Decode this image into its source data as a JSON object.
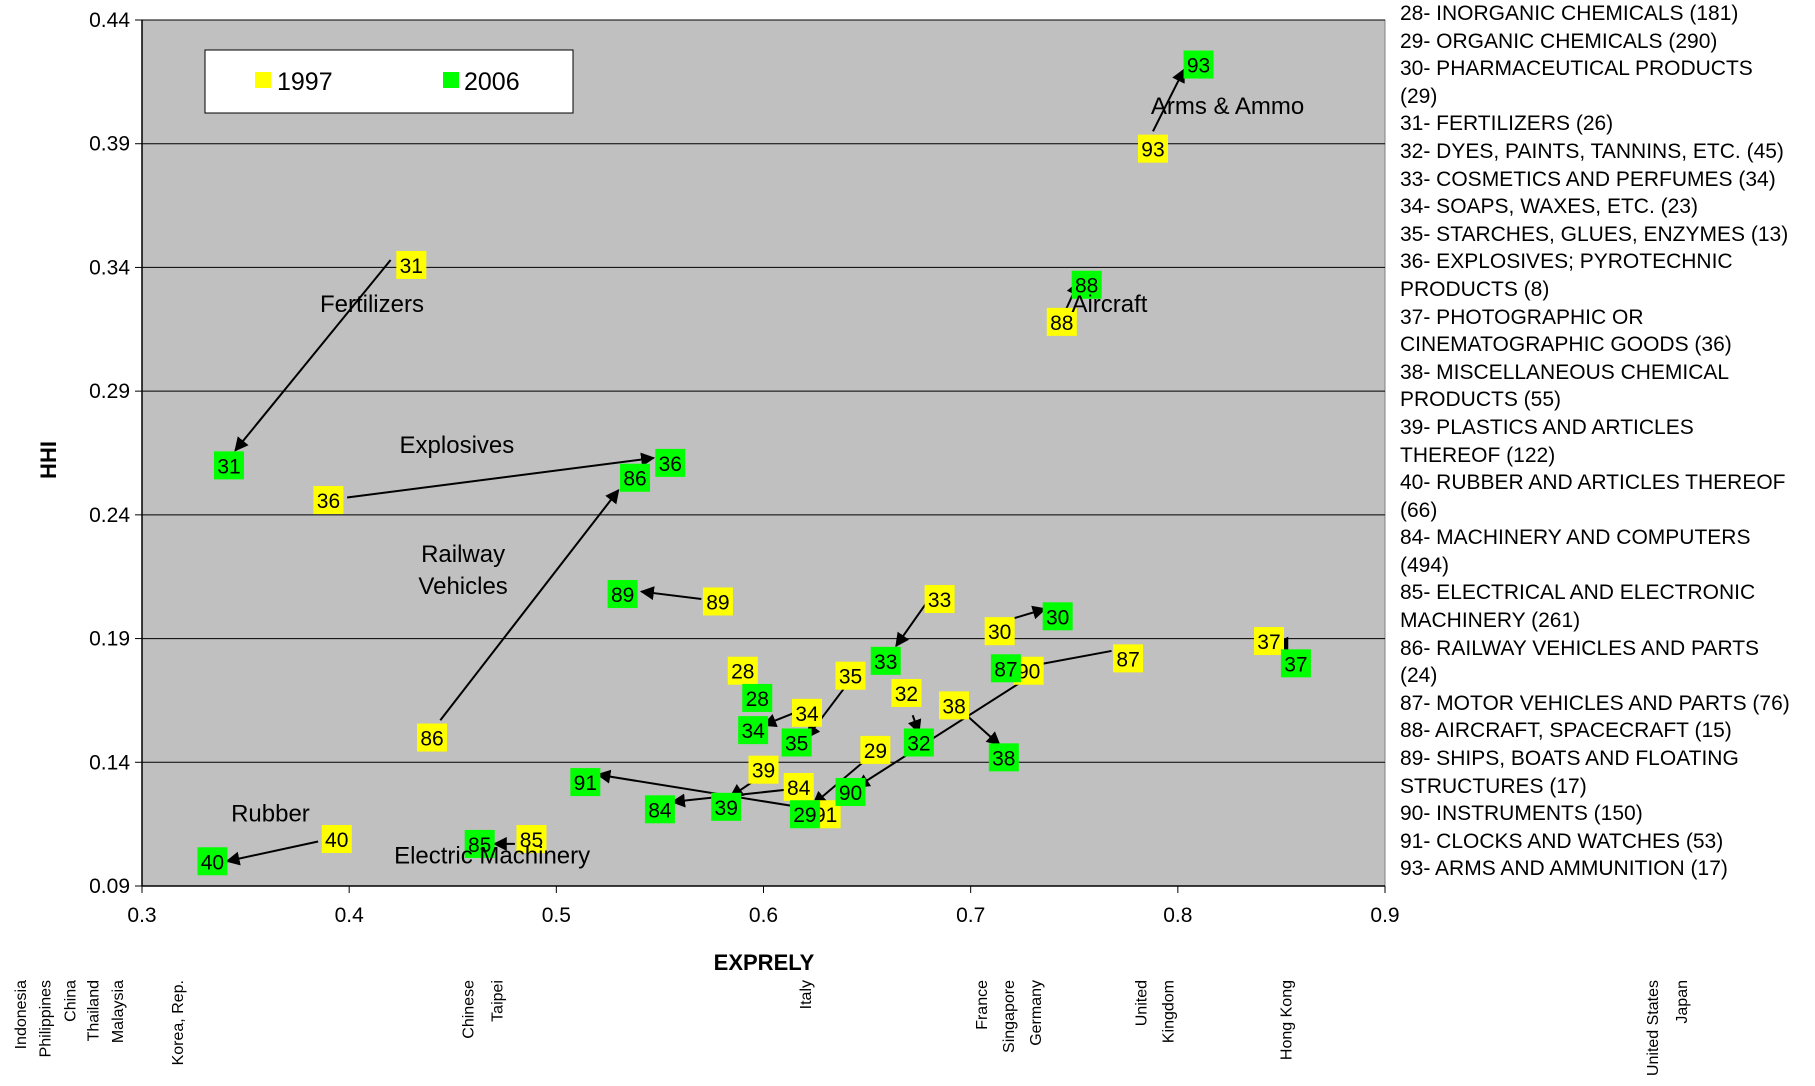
{
  "chart_data": {
    "type": "scatter",
    "xlabel": "EXPRELY",
    "ylabel": "HHI",
    "xlim": [
      0.3,
      0.9
    ],
    "ylim": [
      0.09,
      0.44
    ],
    "x_ticks": [
      "0.3",
      "0.4",
      "0.5",
      "0.6",
      "0.7",
      "0.8",
      "0.9"
    ],
    "y_ticks": [
      "0.09",
      "0.14",
      "0.19",
      "0.24",
      "0.29",
      "0.34",
      "0.39",
      "0.44"
    ],
    "grid": "horizontal",
    "legend": {
      "placement": "top-left",
      "entries": [
        "1997",
        "2006"
      ]
    },
    "colors": {
      "1997": "#ffff00",
      "2006": "#00ff00",
      "plot_background": "#c0c0c0"
    },
    "series": [
      {
        "name": "1997",
        "points": [
          {
            "label": "31",
            "x": 0.43,
            "y": 0.341
          },
          {
            "label": "36",
            "x": 0.39,
            "y": 0.246
          },
          {
            "label": "86",
            "x": 0.44,
            "y": 0.15
          },
          {
            "label": "89",
            "x": 0.578,
            "y": 0.205
          },
          {
            "label": "40",
            "x": 0.394,
            "y": 0.109
          },
          {
            "label": "85",
            "x": 0.488,
            "y": 0.109
          },
          {
            "label": "93",
            "x": 0.788,
            "y": 0.388
          },
          {
            "label": "88",
            "x": 0.744,
            "y": 0.318
          },
          {
            "label": "33",
            "x": 0.685,
            "y": 0.206
          },
          {
            "label": "30",
            "x": 0.714,
            "y": 0.193
          },
          {
            "label": "87",
            "x": 0.776,
            "y": 0.182
          },
          {
            "label": "37",
            "x": 0.844,
            "y": 0.189
          },
          {
            "label": "28",
            "x": 0.59,
            "y": 0.177
          },
          {
            "label": "35",
            "x": 0.642,
            "y": 0.175
          },
          {
            "label": "34",
            "x": 0.621,
            "y": 0.16
          },
          {
            "label": "32",
            "x": 0.669,
            "y": 0.168
          },
          {
            "label": "38",
            "x": 0.692,
            "y": 0.163
          },
          {
            "label": "29",
            "x": 0.654,
            "y": 0.145
          },
          {
            "label": "39",
            "x": 0.6,
            "y": 0.137
          },
          {
            "label": "84",
            "x": 0.617,
            "y": 0.13
          },
          {
            "label": "90",
            "x": 0.728,
            "y": 0.177
          },
          {
            "label": "91",
            "x": 0.63,
            "y": 0.119
          }
        ]
      },
      {
        "name": "2006",
        "points": [
          {
            "label": "31",
            "x": 0.342,
            "y": 0.26
          },
          {
            "label": "36",
            "x": 0.555,
            "y": 0.261
          },
          {
            "label": "86",
            "x": 0.538,
            "y": 0.255
          },
          {
            "label": "89",
            "x": 0.532,
            "y": 0.208
          },
          {
            "label": "40",
            "x": 0.334,
            "y": 0.1
          },
          {
            "label": "85",
            "x": 0.463,
            "y": 0.107
          },
          {
            "label": "93",
            "x": 0.81,
            "y": 0.422
          },
          {
            "label": "88",
            "x": 0.756,
            "y": 0.333
          },
          {
            "label": "33",
            "x": 0.659,
            "y": 0.181
          },
          {
            "label": "30",
            "x": 0.742,
            "y": 0.199
          },
          {
            "label": "87",
            "x": 0.717,
            "y": 0.178
          },
          {
            "label": "37",
            "x": 0.857,
            "y": 0.18
          },
          {
            "label": "28",
            "x": 0.597,
            "y": 0.166
          },
          {
            "label": "35",
            "x": 0.616,
            "y": 0.148
          },
          {
            "label": "34",
            "x": 0.595,
            "y": 0.153
          },
          {
            "label": "32",
            "x": 0.675,
            "y": 0.148
          },
          {
            "label": "38",
            "x": 0.716,
            "y": 0.142
          },
          {
            "label": "29",
            "x": 0.62,
            "y": 0.119
          },
          {
            "label": "39",
            "x": 0.582,
            "y": 0.122
          },
          {
            "label": "84",
            "x": 0.55,
            "y": 0.121
          },
          {
            "label": "90",
            "x": 0.642,
            "y": 0.128
          },
          {
            "label": "91",
            "x": 0.514,
            "y": 0.132
          }
        ]
      }
    ],
    "arrows": [
      {
        "label": "31",
        "from": [
          0.42,
          0.343
        ],
        "to": [
          0.345,
          0.266
        ]
      },
      {
        "label": "36",
        "from": [
          0.399,
          0.247
        ],
        "to": [
          0.547,
          0.263
        ]
      },
      {
        "label": "86",
        "from": [
          0.444,
          0.157
        ],
        "to": [
          0.53,
          0.25
        ]
      },
      {
        "label": "89",
        "from": [
          0.57,
          0.206
        ],
        "to": [
          0.541,
          0.209
        ]
      },
      {
        "label": "40",
        "from": [
          0.385,
          0.108
        ],
        "to": [
          0.341,
          0.1
        ]
      },
      {
        "label": "85",
        "from": [
          0.48,
          0.107
        ],
        "to": [
          0.47,
          0.107
        ]
      },
      {
        "label": "93",
        "from": [
          0.788,
          0.395
        ],
        "to": [
          0.803,
          0.42
        ]
      },
      {
        "label": "88",
        "from": [
          0.746,
          0.323
        ],
        "to": [
          0.752,
          0.334
        ]
      },
      {
        "label": "33",
        "from": [
          0.68,
          0.206
        ],
        "to": [
          0.664,
          0.187
        ]
      },
      {
        "label": "30",
        "from": [
          0.72,
          0.198
        ],
        "to": [
          0.736,
          0.202
        ]
      },
      {
        "label": "87",
        "from": [
          0.768,
          0.185
        ],
        "to": [
          0.723,
          0.178
        ]
      },
      {
        "label": "37",
        "from": [
          0.85,
          0.19
        ],
        "to": [
          0.853,
          0.185
        ]
      },
      {
        "label": "35",
        "from": [
          0.639,
          0.17
        ],
        "to": [
          0.621,
          0.15
        ]
      },
      {
        "label": "34",
        "from": [
          0.615,
          0.16
        ],
        "to": [
          0.6,
          0.155
        ]
      },
      {
        "label": "32",
        "from": [
          0.672,
          0.159
        ],
        "to": [
          0.675,
          0.152
        ]
      },
      {
        "label": "38",
        "from": [
          0.698,
          0.159
        ],
        "to": [
          0.714,
          0.147
        ]
      },
      {
        "label": "29",
        "from": [
          0.648,
          0.14
        ],
        "to": [
          0.624,
          0.123
        ]
      },
      {
        "label": "39",
        "from": [
          0.598,
          0.134
        ],
        "to": [
          0.584,
          0.126
        ]
      },
      {
        "label": "84",
        "from": [
          0.612,
          0.129
        ],
        "to": [
          0.556,
          0.124
        ]
      },
      {
        "label": "90",
        "from": [
          0.731,
          0.176
        ],
        "to": [
          0.645,
          0.13
        ]
      },
      {
        "label": "91",
        "from": [
          0.624,
          0.121
        ],
        "to": [
          0.52,
          0.135
        ]
      }
    ],
    "annotations": [
      {
        "text": "Fertilizers",
        "x": 0.411,
        "y": 0.322
      },
      {
        "text": "Explosives",
        "x": 0.452,
        "y": 0.265
      },
      {
        "text": "Railway",
        "x": 0.455,
        "y": 0.221
      },
      {
        "text": "Vehicles",
        "x": 0.455,
        "y": 0.208
      },
      {
        "text": "Rubber",
        "x": 0.362,
        "y": 0.116
      },
      {
        "text": "Electric Machinery",
        "x": 0.469,
        "y": 0.099
      },
      {
        "text": "Arms & Ammo",
        "x": 0.824,
        "y": 0.402
      },
      {
        "text": "Aircraft",
        "x": 0.767,
        "y": 0.322
      }
    ],
    "countries": [
      {
        "text": "Indonesia",
        "x": 0.241
      },
      {
        "text": "Philippines",
        "x": 0.253
      },
      {
        "text": "China",
        "x": 0.265
      },
      {
        "text": "Thailand",
        "x": 0.276
      },
      {
        "text": "Malaysia",
        "x": 0.288
      },
      {
        "text": "Korea, Rep.",
        "x": 0.317
      },
      {
        "text": "Chinese",
        "x": 0.457
      },
      {
        "text": "Taipei",
        "x": 0.471
      },
      {
        "text": "Italy",
        "x": 0.62
      },
      {
        "text": "France",
        "x": 0.705
      },
      {
        "text": "Singapore",
        "x": 0.718
      },
      {
        "text": "Germany",
        "x": 0.731
      },
      {
        "text": "United",
        "x": 0.782
      },
      {
        "text": "Kingdom",
        "x": 0.795
      },
      {
        "text": "Hong Kong",
        "x": 0.852
      },
      {
        "text": "United States",
        "x": 1.029
      },
      {
        "text": "Japan",
        "x": 1.043
      }
    ]
  },
  "side_legend": [
    "28- INORGANIC CHEMICALS (181)",
    "29- ORGANIC CHEMICALS (290)",
    "30- PHARMACEUTICAL PRODUCTS",
    "(29)",
    "31- FERTILIZERS (26)",
    "32- DYES, PAINTS, TANNINS, ETC. (45)",
    "33- COSMETICS AND PERFUMES (34)",
    "34- SOAPS, WAXES, ETC. (23)",
    "35- STARCHES, GLUES, ENZYMES (13)",
    "36- EXPLOSIVES; PYROTECHNIC",
    "PRODUCTS (8)",
    "37- PHOTOGRAPHIC OR",
    "CINEMATOGRAPHIC GOODS (36)",
    "38- MISCELLANEOUS CHEMICAL",
    "PRODUCTS (55)",
    "39- PLASTICS AND ARTICLES",
    "THEREOF (122)",
    "40- RUBBER AND ARTICLES THEREOF",
    "(66)",
    "84- MACHINERY AND COMPUTERS",
    "(494)",
    "85- ELECTRICAL AND ELECTRONIC",
    "MACHINERY (261)",
    "86- RAILWAY VEHICLES AND PARTS",
    "(24)",
    "87- MOTOR VEHICLES AND PARTS (76)",
    "88- AIRCRAFT, SPACECRAFT (15)",
    "89- SHIPS, BOATS AND FLOATING",
    "STRUCTURES (17)",
    "90- INSTRUMENTS (150)",
    "91- CLOCKS AND WATCHES (53)",
    "93- ARMS AND AMMUNITION (17)"
  ]
}
